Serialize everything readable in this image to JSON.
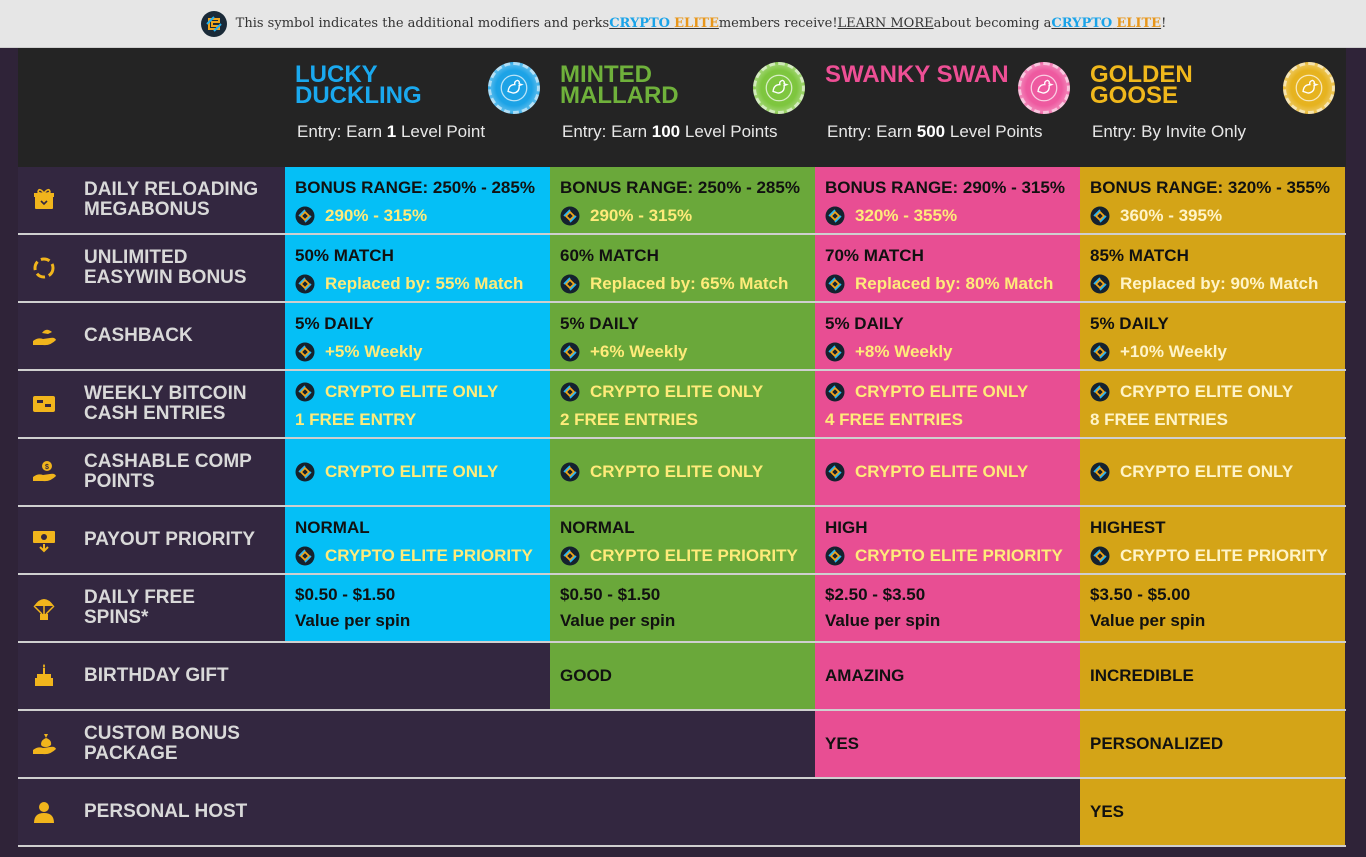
{
  "banner": {
    "text1": "This symbol indicates the additional modifiers and perks ",
    "crypto1": "CRYPTO",
    "elite1": "ELITE",
    "text2": " members receive! ",
    "learn": "LEARN MORE",
    "text3": " about becoming a ",
    "crypto2": "CRYPTO",
    "elite2": "ELITE",
    "end": "!"
  },
  "tiers": [
    {
      "name": "LUCKY DUCKLING",
      "color": "#1aa9ef",
      "entry_pre": "Entry: Earn ",
      "entry_num": "1",
      "entry_post": " Level Point",
      "medal_text": "LUCKY DUCKLING CLASS"
    },
    {
      "name": "MINTED MALLARD",
      "color": "#6fb13b",
      "entry_pre": "Entry: Earn ",
      "entry_num": "100",
      "entry_post": " Level Points",
      "medal_text": "MINTED MALLARD CLASS"
    },
    {
      "name": "SWANKY SWAN",
      "color": "#ee4f95",
      "entry_pre": "Entry: Earn ",
      "entry_num": "500",
      "entry_post": " Level Points",
      "medal_text": "SWANKY SWAN CLASS"
    },
    {
      "name": "GOLDEN GOOSE",
      "color": "#f0b81c",
      "entry_pre": "Entry: By Invite Only",
      "entry_num": "",
      "entry_post": "",
      "medal_text": "GOLDEN GOOSE CLASS"
    }
  ],
  "rows": [
    {
      "label": "DAILY RELOADING MEGABONUS",
      "icon": "gift-box-icon",
      "cells": [
        {
          "main": "BONUS RANGE: 250% - 285%",
          "perk": "290% - 315%"
        },
        {
          "main": "BONUS RANGE: 250% - 285%",
          "perk": "290% - 315%"
        },
        {
          "main": "BONUS RANGE: 290% - 315%",
          "perk": "320% - 355%"
        },
        {
          "main": "BONUS RANGE: 320% - 355%",
          "perk": "360% - 395%"
        }
      ]
    },
    {
      "label": "UNLIMITED EASYWIN BONUS",
      "icon": "refresh-circle-icon",
      "cells": [
        {
          "main": "50% MATCH",
          "perk": "Replaced by: 55% Match"
        },
        {
          "main": "60% MATCH",
          "perk": "Replaced by: 65% Match"
        },
        {
          "main": "70% MATCH",
          "perk": "Replaced by: 80% Match"
        },
        {
          "main": "85% MATCH",
          "perk": "Replaced by: 90% Match"
        }
      ]
    },
    {
      "label": "CASHBACK",
      "icon": "hand-coin-icon",
      "cells": [
        {
          "main": "5% DAILY",
          "perk": "+5% Weekly"
        },
        {
          "main": "5% DAILY",
          "perk": "+6% Weekly"
        },
        {
          "main": "5% DAILY",
          "perk": "+8% Weekly"
        },
        {
          "main": "5% DAILY",
          "perk": "+10% Weekly"
        }
      ]
    },
    {
      "label": "WEEKLY BITCOIN CASH ENTRIES",
      "icon": "ticket-icon",
      "cells": [
        {
          "perk": "CRYPTO ELITE ONLY",
          "extra": "1 FREE ENTRY"
        },
        {
          "perk": "CRYPTO ELITE ONLY",
          "extra": "2 FREE ENTRIES"
        },
        {
          "perk": "CRYPTO ELITE ONLY",
          "extra": "4 FREE ENTRIES"
        },
        {
          "perk": "CRYPTO ELITE ONLY",
          "extra": "8 FREE ENTRIES"
        }
      ]
    },
    {
      "label": "CASHABLE COMP POINTS",
      "icon": "hand-dollar-icon",
      "cells": [
        {
          "perk": "CRYPTO ELITE ONLY"
        },
        {
          "perk": "CRYPTO ELITE ONLY"
        },
        {
          "perk": "CRYPTO ELITE ONLY"
        },
        {
          "perk": "CRYPTO ELITE ONLY"
        }
      ]
    },
    {
      "label": "PAYOUT PRIORITY",
      "icon": "cash-out-icon",
      "cells": [
        {
          "main": "NORMAL",
          "perk": "CRYPTO ELITE PRIORITY"
        },
        {
          "main": "NORMAL",
          "perk": "CRYPTO ELITE PRIORITY"
        },
        {
          "main": "HIGH",
          "perk": "CRYPTO ELITE PRIORITY"
        },
        {
          "main": "HIGHEST",
          "perk": "CRYPTO ELITE PRIORITY"
        }
      ]
    },
    {
      "label": "DAILY FREE SPINS*",
      "icon": "parachute-icon",
      "cells": [
        {
          "main": "$0.50 - $1.50",
          "sub": "Value per spin"
        },
        {
          "main": "$0.50 - $1.50",
          "sub": "Value per spin"
        },
        {
          "main": "$2.50 - $3.50",
          "sub": "Value per spin"
        },
        {
          "main": "$3.50 - $5.00",
          "sub": "Value per spin"
        }
      ]
    },
    {
      "label": "BIRTHDAY GIFT",
      "icon": "cake-icon",
      "cells": [
        null,
        {
          "main": "GOOD"
        },
        {
          "main": "AMAZING"
        },
        {
          "main": "INCREDIBLE"
        }
      ]
    },
    {
      "label": "CUSTOM BONUS PACKAGE",
      "icon": "money-bag-hand-icon",
      "cells": [
        null,
        null,
        {
          "main": "YES"
        },
        {
          "main": "PERSONALIZED"
        }
      ]
    },
    {
      "label": "PERSONAL HOST",
      "icon": "person-icon",
      "cells": [
        null,
        null,
        null,
        {
          "main": "YES"
        }
      ]
    }
  ]
}
